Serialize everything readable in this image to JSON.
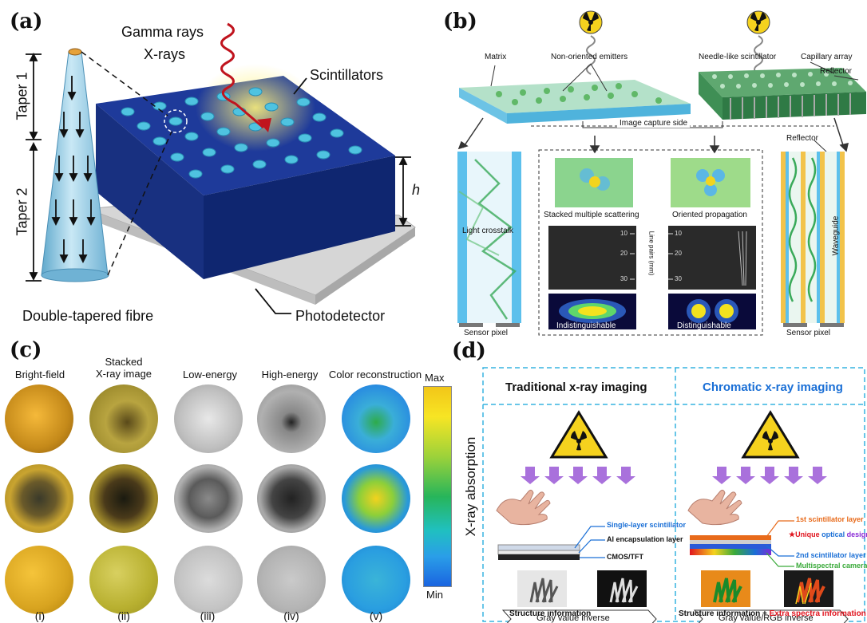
{
  "panel_a": {
    "label": "(a)",
    "gamma": "Gamma rays",
    "xrays": "X-rays",
    "taper1": "Taper 1",
    "taper2": "Taper 2",
    "scintillators": "Scintillators",
    "h": "h",
    "fibre": "Double-tapered fibre",
    "photodetector": "Photodetector",
    "colors": {
      "block_top": "#1e3a9a",
      "block_side": "#0f2670",
      "hole": "#4fc3e0",
      "fibre": "#8ec9e3",
      "ray": "#c0141e"
    }
  },
  "panel_b": {
    "label": "(b)",
    "matrix": "Matrix",
    "non_oriented": "Non-oriented emitters",
    "needle": "Needle-like scintillator",
    "capillary": "Capillary array",
    "reflector_top": "Reflector",
    "capture_side": "Image capture side",
    "reflector_side": "Reflector",
    "crosstalk": "Light crosstalk",
    "stacked": "Stacked multiple scattering",
    "oriented": "Oriented propagation",
    "line_pairs": "Line pairs (mm)",
    "ticks_left": [
      "10",
      "20",
      "30"
    ],
    "ticks_right": [
      "10",
      "20",
      "30"
    ],
    "indist": "Indistinguishable",
    "dist": "Distinguishable",
    "waveguide": "Waveguide",
    "sensor_left": "Sensor pixel",
    "sensor_right": "Sensor pixel"
  },
  "panel_c": {
    "label": "(c)",
    "columns": [
      "Bright-field",
      "Stacked\nX-ray image",
      "Low-energy",
      "High-energy",
      "Color reconstruction"
    ],
    "roman": [
      "(i)",
      "(ii)",
      "(iii)",
      "(iv)",
      "(v)"
    ],
    "colorbar_max": "Max",
    "colorbar_min": "Min",
    "colorbar_label": "X-ray absorption"
  },
  "panel_d": {
    "label": "(d)",
    "left_title": "Traditional x-ray imaging",
    "right_title": "Chromatic x-ray imaging",
    "single_layer": "Single-layer scintillator",
    "al_layer": "Al encapsulation layer",
    "cmos": "CMOS/TFT",
    "first_layer": "1st scintillator layer",
    "unique_star": "★",
    "unique_word1": "Unique",
    "unique_word2": "optical",
    "unique_word3": "design",
    "second_layer": "2nd scintillator layer",
    "multispectral": "Multispectral camera",
    "gray_inverse": "Gray value inverse",
    "gray_rgb": "Gray value/RGB inverse",
    "structure_left": "Structure information",
    "structure_right": "Structure information",
    "plus": " + ",
    "extra": "Extra spectra information",
    "colors": {
      "title_left": "#111111",
      "title_right": "#1a6fd6",
      "border": "#36b4e0",
      "arrow": "#9b59d6",
      "extra": "#e0141e"
    }
  }
}
